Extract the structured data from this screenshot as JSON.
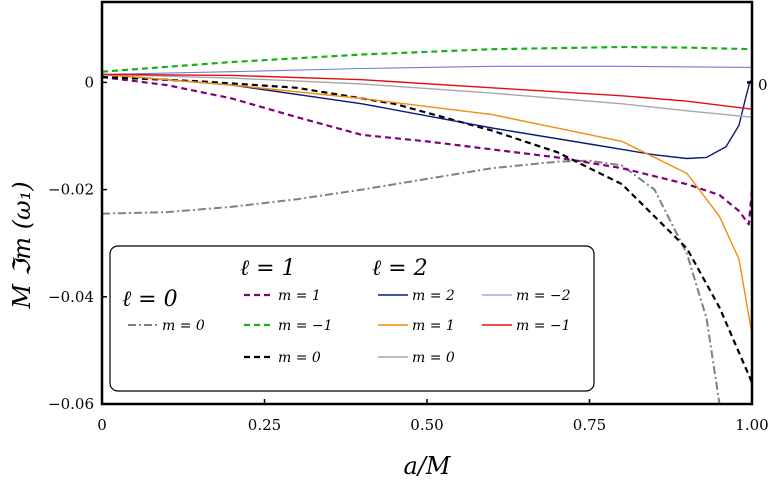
{
  "chart_data": {
    "type": "line",
    "title": "",
    "xlabel": "a/M",
    "ylabel": "M ℑm (ω₁)",
    "xlim": [
      0,
      1.0
    ],
    "ylim": [
      -0.06,
      0.015
    ],
    "grid": false,
    "legend_position": "bottom-left",
    "x_ticks": [
      {
        "value": 0,
        "label": "0"
      },
      {
        "value": 0.25,
        "label": "0.25"
      },
      {
        "value": 0.5,
        "label": "0.50"
      },
      {
        "value": 0.75,
        "label": "0.75"
      },
      {
        "value": 1.0,
        "label": "1.00"
      }
    ],
    "y_ticks": [
      {
        "value": 0,
        "label": "0"
      },
      {
        "value": -0.02,
        "label": "−0.02"
      },
      {
        "value": -0.04,
        "label": "−0.04"
      },
      {
        "value": -0.06,
        "label": "−0.06"
      }
    ],
    "right_marker_label": "0",
    "legend": {
      "groups": [
        {
          "heading": "ℓ = 0"
        },
        {
          "heading": "ℓ = 1"
        },
        {
          "heading": "ℓ = 2"
        }
      ]
    },
    "series": [
      {
        "name": "m = 0",
        "group": 0,
        "color": "#808080",
        "dash": "8,3,2,3",
        "width": 2,
        "points": [
          [
            0,
            -0.0245
          ],
          [
            0.1,
            -0.0242
          ],
          [
            0.2,
            -0.0232
          ],
          [
            0.3,
            -0.0218
          ],
          [
            0.4,
            -0.02
          ],
          [
            0.5,
            -0.018
          ],
          [
            0.6,
            -0.016
          ],
          [
            0.7,
            -0.0148
          ],
          [
            0.75,
            -0.0146
          ],
          [
            0.8,
            -0.0155
          ],
          [
            0.85,
            -0.02
          ],
          [
            0.9,
            -0.032
          ],
          [
            0.93,
            -0.044
          ],
          [
            0.95,
            -0.06
          ]
        ]
      },
      {
        "name": "m = 1",
        "group": 1,
        "color": "#800080",
        "dash": "6,4",
        "width": 2.2,
        "points": [
          [
            0,
            0.001
          ],
          [
            0.1,
            -0.0005
          ],
          [
            0.2,
            -0.003
          ],
          [
            0.3,
            -0.0065
          ],
          [
            0.4,
            -0.0098
          ],
          [
            0.5,
            -0.011
          ],
          [
            0.6,
            -0.0125
          ],
          [
            0.7,
            -0.014
          ],
          [
            0.8,
            -0.016
          ],
          [
            0.9,
            -0.019
          ],
          [
            0.95,
            -0.021
          ],
          [
            0.98,
            -0.024
          ],
          [
            0.995,
            -0.0265
          ],
          [
            1.0,
            -0.02
          ]
        ]
      },
      {
        "name": "m = −1",
        "group": 1,
        "color": "#1aaf1a",
        "dash": "6,4",
        "width": 2.2,
        "points": [
          [
            0,
            0.002
          ],
          [
            0.2,
            0.0038
          ],
          [
            0.4,
            0.0052
          ],
          [
            0.6,
            0.0062
          ],
          [
            0.8,
            0.0066
          ],
          [
            0.9,
            0.0065
          ],
          [
            1.0,
            0.0062
          ]
        ]
      },
      {
        "name": "m = 0",
        "group": 1,
        "color": "#000000",
        "dash": "6,4",
        "width": 2.2,
        "points": [
          [
            0,
            0.001
          ],
          [
            0.15,
            0.0002
          ],
          [
            0.3,
            -0.001
          ],
          [
            0.45,
            -0.004
          ],
          [
            0.6,
            -0.009
          ],
          [
            0.7,
            -0.013
          ],
          [
            0.8,
            -0.019
          ],
          [
            0.9,
            -0.031
          ],
          [
            0.95,
            -0.042
          ],
          [
            1.0,
            -0.056
          ]
        ]
      },
      {
        "name": "m = 2",
        "group": 2,
        "color": "#0a1a7a",
        "dash": "",
        "width": 1.4,
        "points": [
          [
            0,
            0.0015
          ],
          [
            0.2,
            -0.0005
          ],
          [
            0.4,
            -0.004
          ],
          [
            0.6,
            -0.0085
          ],
          [
            0.75,
            -0.0115
          ],
          [
            0.85,
            -0.0135
          ],
          [
            0.9,
            -0.0142
          ],
          [
            0.93,
            -0.014
          ],
          [
            0.96,
            -0.012
          ],
          [
            0.98,
            -0.008
          ],
          [
            0.99,
            -0.003
          ],
          [
            0.997,
            0.0002
          ],
          [
            1.0,
            0.0003
          ]
        ]
      },
      {
        "name": "m = 1",
        "group": 2,
        "color": "#f28c0f",
        "dash": "",
        "width": 1.4,
        "points": [
          [
            0,
            0.0015
          ],
          [
            0.2,
            -0.0005
          ],
          [
            0.4,
            -0.003
          ],
          [
            0.6,
            -0.006
          ],
          [
            0.8,
            -0.011
          ],
          [
            0.9,
            -0.017
          ],
          [
            0.95,
            -0.025
          ],
          [
            0.98,
            -0.033
          ],
          [
            1.0,
            -0.047
          ]
        ]
      },
      {
        "name": "m = 0",
        "group": 2,
        "color": "#a8a8a8",
        "dash": "",
        "width": 1.4,
        "points": [
          [
            0,
            0.0015
          ],
          [
            0.2,
            0.0008
          ],
          [
            0.4,
            -0.0003
          ],
          [
            0.6,
            -0.002
          ],
          [
            0.8,
            -0.004
          ],
          [
            0.9,
            -0.0053
          ],
          [
            1.0,
            -0.0065
          ]
        ]
      },
      {
        "name": "m = −2",
        "group": 2,
        "color": "#7777dd",
        "dash": "",
        "width": 1.1,
        "points": [
          [
            0,
            0.0015
          ],
          [
            0.2,
            0.002
          ],
          [
            0.4,
            0.0026
          ],
          [
            0.6,
            0.003
          ],
          [
            0.8,
            0.003
          ],
          [
            1.0,
            0.0028
          ]
        ]
      },
      {
        "name": "m = −1",
        "group": 2,
        "color": "#e01010",
        "dash": "",
        "width": 1.4,
        "points": [
          [
            0,
            0.0015
          ],
          [
            0.2,
            0.0013
          ],
          [
            0.4,
            0.0005
          ],
          [
            0.6,
            -0.001
          ],
          [
            0.8,
            -0.0025
          ],
          [
            0.9,
            -0.0035
          ],
          [
            1.0,
            -0.005
          ]
        ]
      }
    ]
  }
}
